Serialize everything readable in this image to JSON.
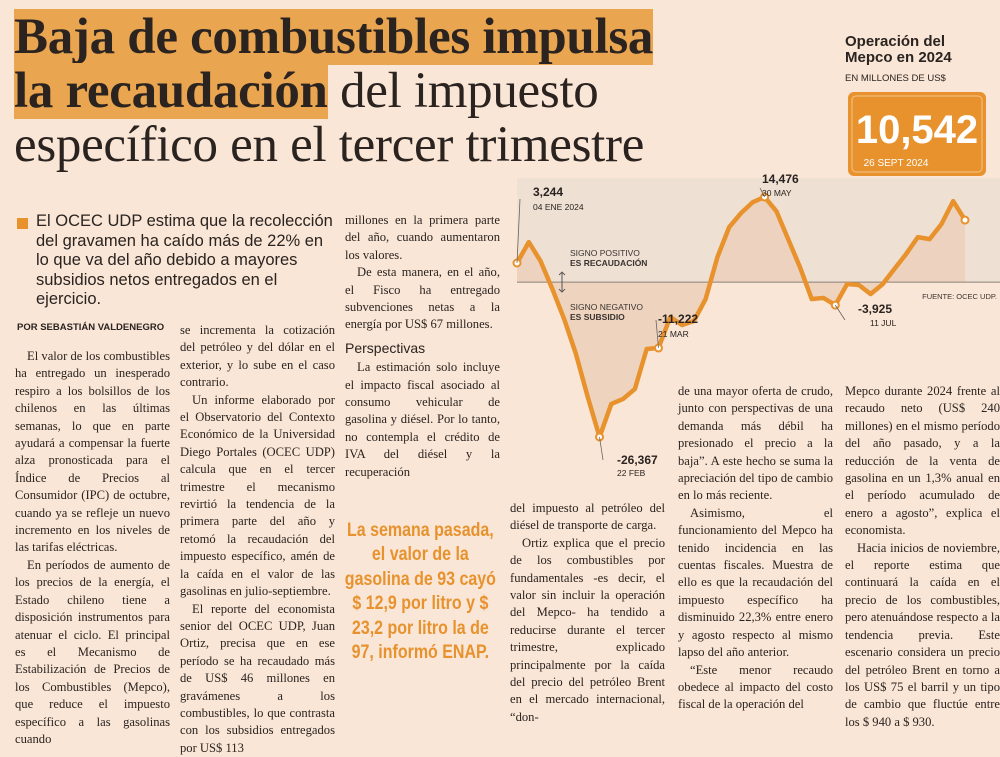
{
  "headline": {
    "highlight_1": "Baja de combustibles impulsa",
    "highlight_2": "la recaudación",
    "rest_2": "del impuesto",
    "line_3": "específico en el tercer trimestre"
  },
  "lead": "El OCEC UDP estima que la recolección del gravamen ha caído más de 22% en lo que va del año debido a mayores subsidios netos entregados en el ejercicio.",
  "byline": "POR SEBASTIÁN VALDENEGRO",
  "subhead": "Perspectivas",
  "pullquote": "La semana pasada, el valor de la gasolina de 93 cayó $ 12,9 por litro y $ 23,2 por litro la de 97, informó ENAP.",
  "columns": [
    [
      "El valor de los combustibles ha entregado un inesperado respiro a los bolsillos de los chilenos en las últimas semanas, lo que en parte ayudará a compensar la fuerte alza pronosticada para el Índice de Precios al Consumidor (IPC) de octubre, cuando ya se refleje un nuevo incremento en los niveles de las tarifas eléctricas.",
      "En períodos de aumento de los precios de la energía, el Estado chileno tiene a disposición instrumentos para atenuar el ciclo. El principal es el Mecanismo de Estabilización de Precios de los Combustibles (Mepco), que reduce el impuesto específico a las gasolinas cuando"
    ],
    [
      "se incrementa la cotización del petróleo y del dólar en el exterior, y lo sube en el caso contrario.",
      "Un informe elaborado por el Observatorio del Contexto Económico de la Universidad Diego Portales (OCEC UDP) calcula que en el tercer trimestre el mecanismo revirtió la tendencia de la primera parte del año y retomó la recaudación del impuesto específico, amén de la caída en el valor de las gasolinas en julio-septiembre.",
      "El reporte del economista senior del OCEC UDP, Juan Ortiz, precisa que en ese período se ha recaudado más de US$ 46 millones en gravámenes a los combustibles, lo que contrasta con los subsidios entregados por US$ 113"
    ],
    [
      "millones en la primera parte del año, cuando aumentaron los valores.",
      "De esta manera, en el año, el Fisco ha entregado subvenciones netas a la energía por US$ 67 millones.",
      "La estimación solo incluye el impacto fiscal asociado al consumo vehicular de gasolina y diésel. Por lo tanto, no contempla el crédito de IVA del diésel y la recuperación"
    ],
    [
      "del impuesto al petróleo del diésel de transporte de carga.",
      "Ortiz explica que el precio de los combustibles por fundamentales -es decir, el valor sin incluir la operación del Mepco- ha tendido a reducirse durante el tercer trimestre, explicado principalmente por la caída del precio del petróleo Brent en el mercado internacional, “don-"
    ],
    [
      "de una mayor oferta de crudo, junto con perspectivas de una demanda más débil ha presionado el precio a la baja”. A este hecho se suma la apreciación del tipo de cambio en lo más reciente.",
      "Asimismo, el funcionamiento del Mepco ha tenido incidencia en las cuentas fiscales. Muestra de ello es que la recaudación del impuesto específico ha disminuido 22,3% entre enero y agosto respecto al mismo lapso del año anterior.",
      "“Este menor recaudo obedece al impacto del costo fiscal de la operación del"
    ],
    [
      "Mepco durante 2024 frente al recaudo neto (US$ 240 millones) en el mismo período del año pasado, y a la reducción de la venta de gasolina en un 1,3% anual en el período acumulado de enero a agosto”, explica el economista.",
      "Hacia inicios de noviembre, el reporte estima que continuará la caída en el precio de los combustibles, pero atenuándose respecto a la tendencia previa. Este escenario considera un precio del petróleo Brent en torno a los US$ 75 el barril y un tipo de cambio que fluctúe entre los $ 940 a $ 930."
    ]
  ],
  "chart_data": {
    "type": "line",
    "title": "Operación del Mepco en 2024",
    "subtitle": "EN MILLONES DE US$",
    "color": "#e8922e",
    "categories": [
      "04 ENE 2024",
      null,
      null,
      null,
      null,
      null,
      null,
      "22 FEB",
      null,
      null,
      null,
      null,
      "21 MAR",
      null,
      null,
      null,
      null,
      null,
      null,
      null,
      null,
      "30 MAY",
      null,
      null,
      null,
      null,
      null,
      "11 JUL",
      null,
      null,
      null,
      null,
      null,
      null,
      null,
      null,
      null,
      null,
      "26 SEPT 2024"
    ],
    "values": [
      3244,
      6800,
      3570,
      -1190,
      -6290,
      -12240,
      -19550,
      -26367,
      -20740,
      -19890,
      -18190,
      -11390,
      -11222,
      -5950,
      -7310,
      -6630,
      -2890,
      4250,
      9350,
      11730,
      13600,
      14476,
      12070,
      7310,
      2550,
      -2890,
      -2700,
      -3925,
      -340,
      -500,
      -2040,
      -400,
      2210,
      4760,
      7650,
      7310,
      9860,
      13770,
      10542
    ],
    "value_labels": [
      "3,244",
      null,
      null,
      null,
      null,
      null,
      null,
      "-26,367",
      null,
      null,
      null,
      null,
      "-11,222",
      null,
      null,
      null,
      null,
      null,
      null,
      null,
      null,
      "14,476",
      null,
      null,
      null,
      null,
      null,
      "-3,925",
      null,
      null,
      null,
      null,
      null,
      null,
      null,
      null,
      null,
      null,
      "10,542"
    ],
    "annotations": {
      "positive": [
        "SIGNO POSITIVO",
        "ES RECAUDACIÓN"
      ],
      "negative": [
        "SIGNO NEGATIVO",
        "ES SUBSIDIO"
      ],
      "source": "FUENTE: OCEC UDP."
    }
  }
}
